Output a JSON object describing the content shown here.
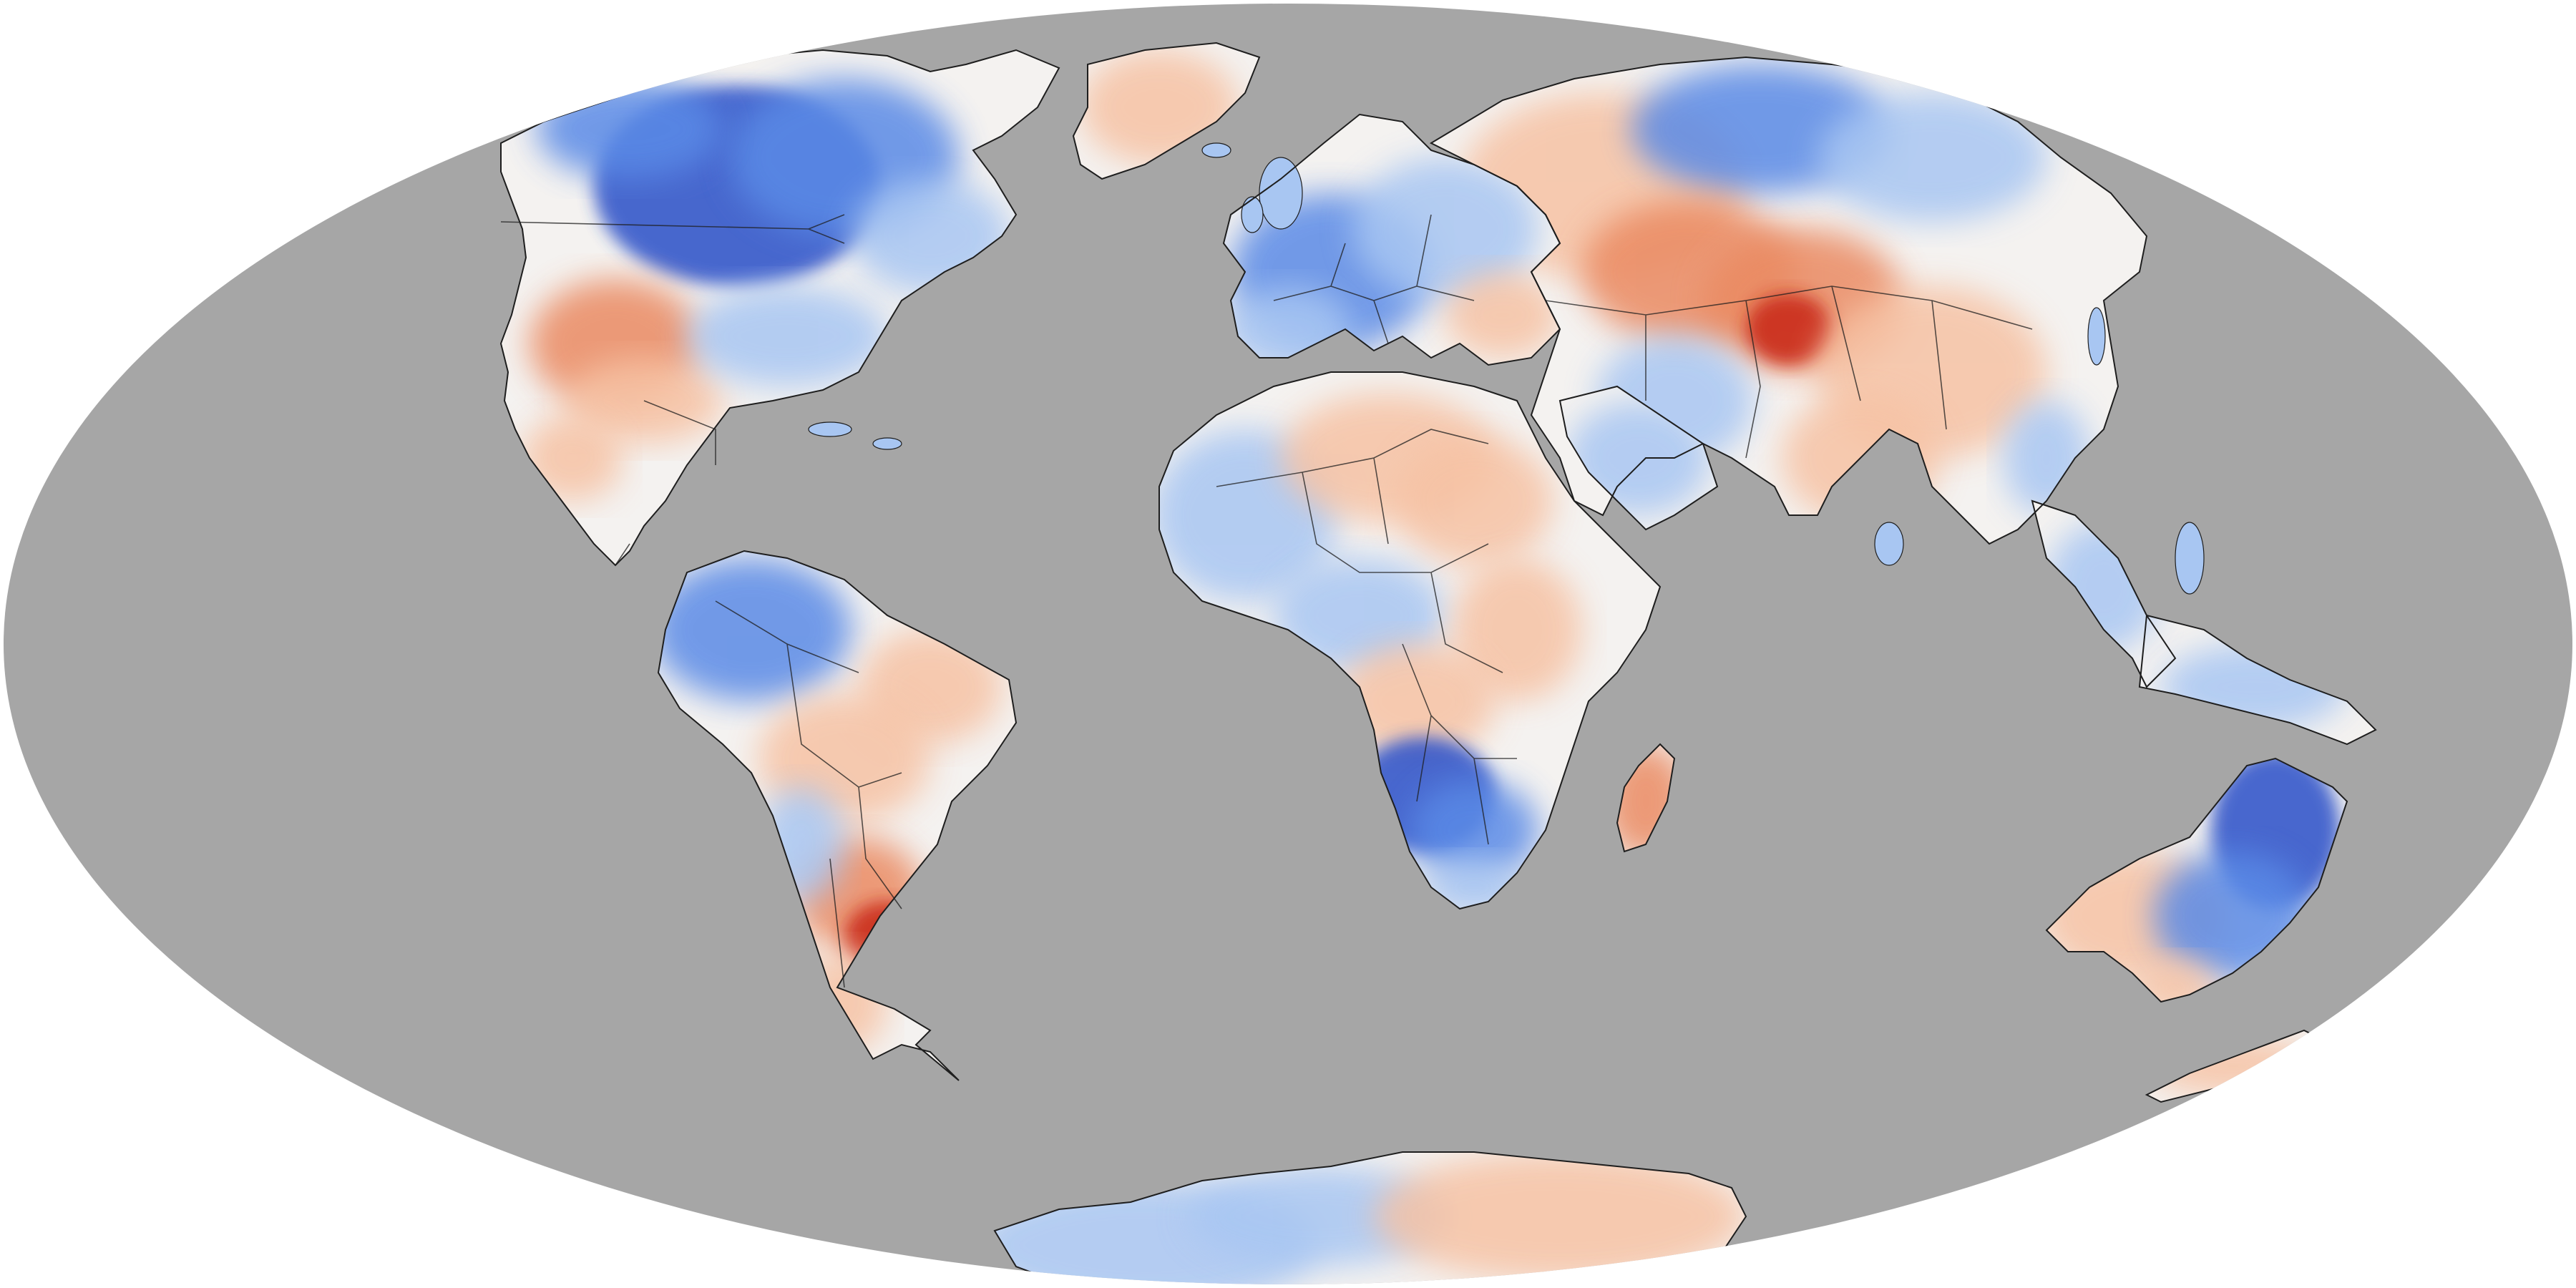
{
  "map": {
    "projection": "Mollweide",
    "ocean_color": "#a6a6a6",
    "background_color": "#ffffff",
    "border_color": "#1e1e1e",
    "scale_colors": {
      "strong_cool": "#2a50c8",
      "cool": "#5a8ae6",
      "mild_cool": "#a8c6f2",
      "neutral": "#f4f2f0",
      "mild_warm": "#f6c2a4",
      "warm": "#ea8a62",
      "strong_warm": "#c82818"
    },
    "regions": [
      {
        "name": "north-america",
        "tone": "mixed"
      },
      {
        "name": "greenland",
        "tone": "mild_warm"
      },
      {
        "name": "south-america",
        "tone": "mixed"
      },
      {
        "name": "europe",
        "tone": "cool"
      },
      {
        "name": "asia",
        "tone": "warm"
      },
      {
        "name": "africa",
        "tone": "mixed"
      },
      {
        "name": "madagascar",
        "tone": "mild_warm"
      },
      {
        "name": "australia",
        "tone": "mixed"
      },
      {
        "name": "new-zealand",
        "tone": "mild_warm"
      },
      {
        "name": "southeast-asia",
        "tone": "cool"
      },
      {
        "name": "antarctica",
        "tone": "mild_cool"
      }
    ]
  }
}
